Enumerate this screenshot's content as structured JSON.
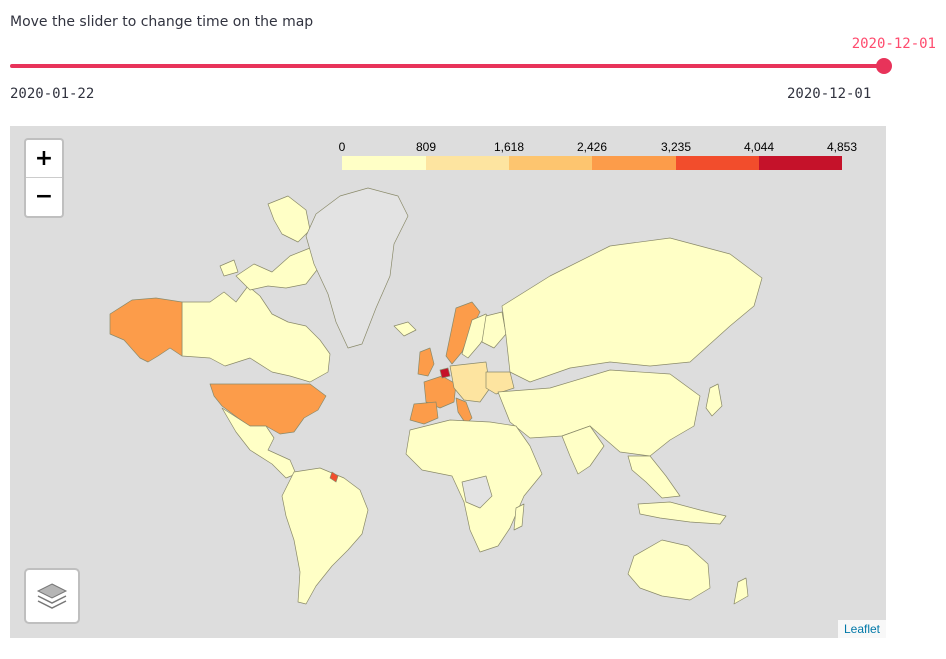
{
  "instruction": "Move the slider to change time on the map",
  "slider": {
    "current_value": "2020-12-01",
    "min_label": "2020-01-22",
    "max_label": "2020-12-01",
    "position": 1.0,
    "accent_color": "#e8335a",
    "current_value_color": "#ff4b6e"
  },
  "map": {
    "zoom_in_label": "+",
    "zoom_out_label": "−",
    "attribution": "Leaflet",
    "attribution_color": "#0078a8",
    "background_color": "#dddddd",
    "no_data_color": "#e3e3e3"
  },
  "legend": {
    "ticks": [
      "0",
      "809",
      "1,618",
      "2,426",
      "3,235",
      "4,044",
      "4,853"
    ],
    "colors": [
      "#ffffc6",
      "#fde4a0",
      "#fdc56f",
      "#fc9c4a",
      "#f24d2c",
      "#c5122a"
    ]
  },
  "icons": {
    "layers": "layers-icon"
  }
}
